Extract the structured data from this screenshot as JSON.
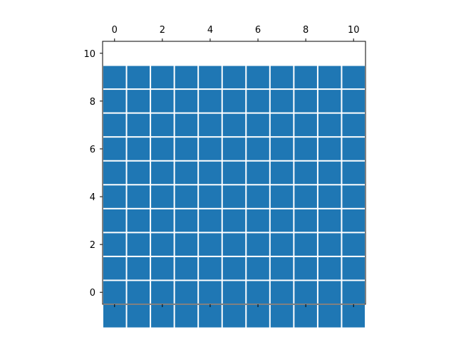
{
  "chart_data": {
    "type": "heatmap",
    "title": "",
    "xlabel": "",
    "ylabel": "",
    "x_axis_position": "top",
    "y_axis_inverted": true,
    "rows": 11,
    "cols": 11,
    "xlim": [
      -0.5,
      10.5
    ],
    "ylim": [
      10.5,
      -0.5
    ],
    "xticks": [
      0,
      2,
      4,
      6,
      8,
      10
    ],
    "xtick_labels": [
      "0",
      "2",
      "4",
      "6",
      "8",
      "10"
    ],
    "yticks": [
      0,
      2,
      4,
      6,
      8,
      10
    ],
    "ytick_labels": [
      "0",
      "2",
      "4",
      "6",
      "8",
      "10"
    ],
    "cell_color": "#1f77b4",
    "cell_edge_color": "#ffffff",
    "grid": false,
    "values": [
      [
        1,
        1,
        1,
        1,
        1,
        1,
        1,
        1,
        1,
        1,
        1
      ],
      [
        1,
        1,
        1,
        1,
        1,
        1,
        1,
        1,
        1,
        1,
        1
      ],
      [
        1,
        1,
        1,
        1,
        1,
        1,
        1,
        1,
        1,
        1,
        1
      ],
      [
        1,
        1,
        1,
        1,
        1,
        1,
        1,
        1,
        1,
        1,
        1
      ],
      [
        1,
        1,
        1,
        1,
        1,
        1,
        1,
        1,
        1,
        1,
        1
      ],
      [
        1,
        1,
        1,
        1,
        1,
        1,
        1,
        1,
        1,
        1,
        1
      ],
      [
        1,
        1,
        1,
        1,
        1,
        1,
        1,
        1,
        1,
        1,
        1
      ],
      [
        1,
        1,
        1,
        1,
        1,
        1,
        1,
        1,
        1,
        1,
        1
      ],
      [
        1,
        1,
        1,
        1,
        1,
        1,
        1,
        1,
        1,
        1,
        1
      ],
      [
        1,
        1,
        1,
        1,
        1,
        1,
        1,
        1,
        1,
        1,
        1
      ],
      [
        1,
        1,
        1,
        1,
        1,
        1,
        1,
        1,
        1,
        1,
        1
      ]
    ]
  }
}
